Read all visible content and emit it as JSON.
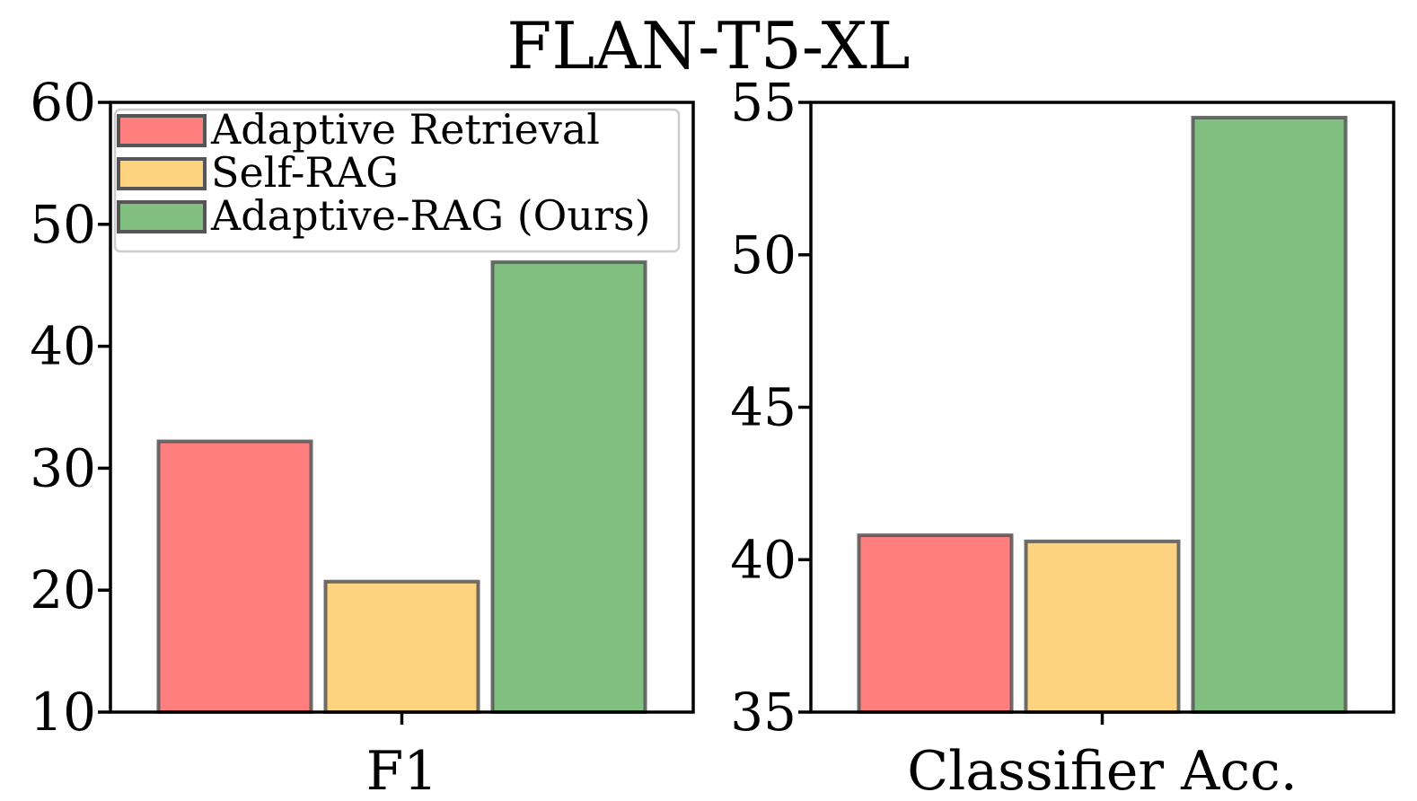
{
  "figure": {
    "title": "FLAN-T5-XL"
  },
  "colors": {
    "Adaptive Retrieval": "#ff7f7f",
    "Self-RAG": "#fed380",
    "Adaptive-RAG (Ours)": "#82c082",
    "bar_edge": "#555555",
    "axes": "#000000"
  },
  "chart_data": [
    {
      "type": "bar",
      "title": "",
      "xlabel": "F1",
      "ylabel": "",
      "categories": [
        "F1"
      ],
      "series": [
        {
          "name": "Adaptive Retrieval",
          "values": [
            32.2
          ]
        },
        {
          "name": "Self-RAG",
          "values": [
            20.7
          ]
        },
        {
          "name": "Adaptive-RAG (Ours)",
          "values": [
            46.9
          ]
        }
      ],
      "ylim": [
        10,
        60
      ],
      "yticks": [
        "10",
        "20",
        "30",
        "40",
        "50",
        "60"
      ],
      "grid": false,
      "legend": {
        "placement": "top-left",
        "entries": [
          "Adaptive Retrieval",
          "Self-RAG",
          "Adaptive-RAG (Ours)"
        ]
      }
    },
    {
      "type": "bar",
      "title": "",
      "xlabel": "Classifier Acc.",
      "ylabel": "",
      "categories": [
        "Classifier Acc."
      ],
      "series": [
        {
          "name": "Adaptive Retrieval",
          "values": [
            40.8
          ]
        },
        {
          "name": "Self-RAG",
          "values": [
            40.6
          ]
        },
        {
          "name": "Adaptive-RAG (Ours)",
          "values": [
            54.5
          ]
        }
      ],
      "ylim": [
        35,
        55
      ],
      "yticks": [
        "35",
        "40",
        "45",
        "50",
        "55"
      ],
      "grid": false,
      "legend": null
    }
  ]
}
